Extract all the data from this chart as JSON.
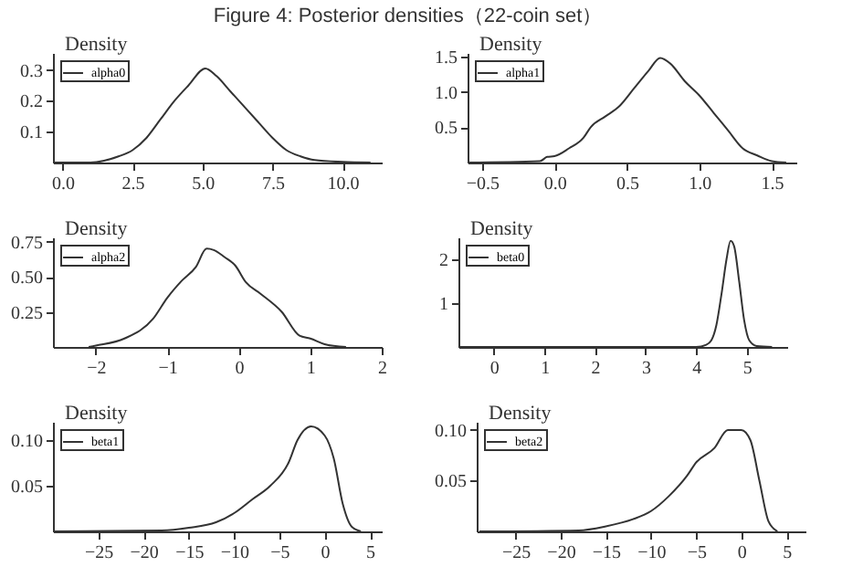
{
  "chart_data": [
    {
      "type": "line",
      "title": "Figure 4: Posterior densities（22-coin set）",
      "ylabel": "Density",
      "legend": "top left",
      "grid": false,
      "xlim": [
        -0.34,
        11.4
      ],
      "ylim": [
        0,
        0.355
      ],
      "xticks": [
        {
          "value": 0,
          "label": "0.0"
        },
        2.5,
        {
          "value": 5,
          "label": "5.0"
        },
        7.5,
        {
          "value": 10,
          "label": "10.0"
        }
      ],
      "yticks": [
        0.1,
        0.2,
        0.3
      ],
      "series": [
        {
          "name": "alpha0",
          "color": "#333333",
          "x": [
            -0.34,
            1,
            2,
            2.5,
            3,
            3.5,
            4,
            4.5,
            5.1,
            5.5,
            6,
            6.5,
            7,
            7.5,
            8,
            8.5,
            9,
            10,
            11
          ],
          "values": [
            0,
            0,
            0.02,
            0.04,
            0.08,
            0.14,
            0.2,
            0.25,
            0.305,
            0.28,
            0.23,
            0.18,
            0.13,
            0.08,
            0.04,
            0.02,
            0.008,
            0.002,
            0
          ]
        }
      ]
    },
    {
      "type": "line",
      "ylabel": "Density",
      "legend": "top left",
      "grid": false,
      "xlim": [
        -0.6,
        1.67
      ],
      "ylim": [
        0,
        1.55
      ],
      "xticks": [
        -0.5,
        {
          "value": 0,
          "label": "0.0"
        },
        0.5,
        {
          "value": 1,
          "label": "1.0"
        },
        1.5
      ],
      "yticks": [
        0.5,
        {
          "value": 1,
          "label": "1.0"
        },
        1.5
      ],
      "series": [
        {
          "name": "alpha1",
          "color": "#333333",
          "x": [
            -0.6,
            -0.1,
            -0.05,
            0.0,
            0.1,
            0.2,
            0.25,
            0.35,
            0.45,
            0.55,
            0.65,
            0.73,
            0.8,
            0.9,
            1.0,
            1.1,
            1.2,
            1.3,
            1.4,
            1.5,
            1.6
          ],
          "values": [
            0,
            0.02,
            0.08,
            0.09,
            0.2,
            0.35,
            0.5,
            0.65,
            0.8,
            1.05,
            1.3,
            1.48,
            1.4,
            1.15,
            0.95,
            0.7,
            0.45,
            0.2,
            0.1,
            0.02,
            0
          ]
        }
      ]
    },
    {
      "type": "line",
      "ylabel": "Density",
      "legend": "top left",
      "grid": false,
      "xlim": [
        -2.6,
        2.0
      ],
      "ylim": [
        0,
        0.78
      ],
      "xticks": [
        -2,
        -1,
        0,
        1,
        2
      ],
      "yticks": [
        0.25,
        {
          "value": 0.5,
          "label": "0.50"
        },
        0.75
      ],
      "series": [
        {
          "name": "alpha2",
          "color": "#333333",
          "x": [
            -2.1,
            -2,
            -1.6,
            -1.2,
            -1,
            -0.8,
            -0.6,
            -0.45,
            -0.35,
            -0.2,
            -0.05,
            0.1,
            0.3,
            0.6,
            0.85,
            1.0,
            1.2,
            1.5
          ],
          "values": [
            0,
            0.01,
            0.06,
            0.2,
            0.35,
            0.47,
            0.57,
            0.7,
            0.69,
            0.64,
            0.58,
            0.46,
            0.38,
            0.25,
            0.08,
            0.06,
            0.02,
            0
          ]
        }
      ]
    },
    {
      "type": "line",
      "ylabel": "Density",
      "legend": "top left",
      "grid": false,
      "xlim": [
        -0.7,
        5.8
      ],
      "ylim": [
        0,
        2.5
      ],
      "xticks": [
        0,
        1,
        2,
        3,
        4,
        5
      ],
      "yticks": [
        1,
        2
      ],
      "series": [
        {
          "name": "beta0",
          "color": "#333333",
          "x": [
            -0.7,
            4.0,
            4.2,
            4.3,
            4.4,
            4.5,
            4.6,
            4.68,
            4.75,
            4.85,
            4.95,
            5.05,
            5.2,
            5.5
          ],
          "values": [
            0,
            0,
            0.05,
            0.15,
            0.5,
            1.2,
            2.0,
            2.42,
            2.3,
            1.5,
            0.6,
            0.15,
            0.02,
            0
          ]
        }
      ]
    },
    {
      "type": "line",
      "ylabel": "Density",
      "legend": "top left",
      "grid": false,
      "xlim": [
        -30,
        6.3
      ],
      "ylim": [
        0,
        0.12
      ],
      "xticks": [
        -25,
        -20,
        -15,
        -10,
        -5,
        0,
        5
      ],
      "yticks": [
        0.05,
        {
          "value": 0.1,
          "label": "0.10"
        }
      ],
      "series": [
        {
          "name": "beta1",
          "color": "#333333",
          "x": [
            -30,
            -18,
            -15,
            -12,
            -10,
            -8,
            -6,
            -4,
            -3,
            -1.5,
            0,
            1,
            2,
            3,
            4
          ],
          "values": [
            0,
            0.001,
            0.004,
            0.01,
            0.02,
            0.035,
            0.05,
            0.075,
            0.1,
            0.115,
            0.105,
            0.08,
            0.03,
            0.005,
            0
          ]
        }
      ]
    },
    {
      "type": "line",
      "ylabel": "Density",
      "legend": "top left",
      "grid": false,
      "xlim": [
        -29.3,
        7.1
      ],
      "ylim": [
        0,
        0.108
      ],
      "xticks": [
        -25,
        -20,
        -15,
        -10,
        -5,
        0,
        5
      ],
      "yticks": [
        0.05,
        {
          "value": 0.1,
          "label": "0.10"
        }
      ],
      "series": [
        {
          "name": "beta2",
          "color": "#333333",
          "x": [
            -29,
            -18,
            -15,
            -12,
            -10,
            -8,
            -6,
            -5,
            -3,
            -1.5,
            0,
            1,
            2,
            3,
            4
          ],
          "values": [
            0,
            0.001,
            0.005,
            0.012,
            0.02,
            0.035,
            0.055,
            0.068,
            0.082,
            0.1,
            0.1,
            0.09,
            0.05,
            0.01,
            0
          ]
        }
      ]
    }
  ]
}
